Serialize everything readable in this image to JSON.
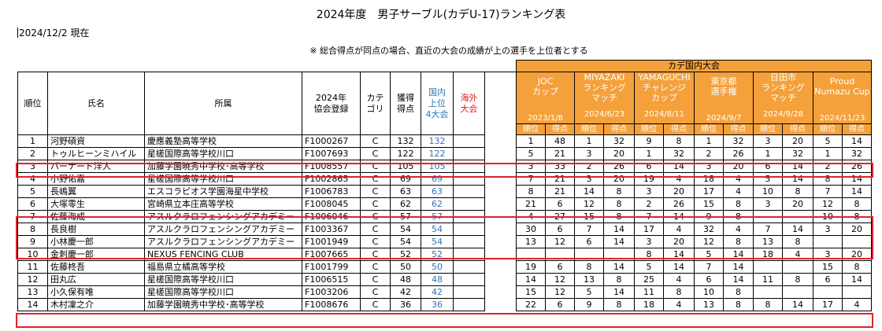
{
  "title": "2024年度　男子サーブル(カデU-17)ランキング表",
  "date": "2024/12/2 現在",
  "note": "※ 総合得点が同点の場合、直近の大会の成績が上の選手を上位者とする",
  "headers": {
    "rank": "順位",
    "name": "氏名",
    "affiliation": "所属",
    "reg_line1": "2024年",
    "reg_line2": "協会登録",
    "cat_line1": "カテ",
    "cat_line2": "ゴリ",
    "points_line1": "獲得",
    "points_line2": "得点",
    "domestic_line1": "国内",
    "domestic_line2": "上位",
    "domestic_line3": "4大会",
    "overseas_line1": "海外",
    "overseas_line2": "大会",
    "domestic_group": "カデ国内大会",
    "sub_rank": "順位",
    "sub_points": "得点"
  },
  "events": [
    {
      "line1": "JOC",
      "line2": "カップ",
      "line3": "",
      "date": "2023/1/8"
    },
    {
      "line1": "MIYAZAKI",
      "line2": "ランキング",
      "line3": "マッチ",
      "date": "2024/6/23"
    },
    {
      "line1": "YAMAGUCHI",
      "line2": "チャレンジ",
      "line3": "カップ",
      "date": "2024/8/11"
    },
    {
      "line1": "東京都",
      "line2": "選手権",
      "line3": "",
      "date": "2024/9/7"
    },
    {
      "line1": "日田市",
      "line2": "ランキング",
      "line3": "マッチ",
      "date": "2024/9/28"
    },
    {
      "line1": "Proud",
      "line2": "Numazu Cup",
      "line3": "",
      "date": "2024/11/23"
    }
  ],
  "rows": [
    {
      "rank": "1",
      "name": "河野碩資",
      "aff": "慶應義塾高等学校",
      "reg": "F1000267",
      "cat": "C",
      "pts": "132",
      "dom": "132",
      "res": [
        "1",
        "48",
        "1",
        "32",
        "9",
        "8",
        "1",
        "32",
        "3",
        "20",
        "5",
        "14"
      ]
    },
    {
      "rank": "2",
      "name": "トゥルヒーンミハイル",
      "aff": "星槎国際高等学校川口",
      "reg": "F1007693",
      "cat": "C",
      "pts": "122",
      "dom": "122",
      "res": [
        "5",
        "21",
        "3",
        "20",
        "1",
        "32",
        "2",
        "26",
        "1",
        "32",
        "1",
        "32"
      ]
    },
    {
      "rank": "3",
      "name": "バーナード洋人",
      "aff": "加藤学園暁秀中学校･高等学校",
      "reg": "F1008557",
      "cat": "C",
      "pts": "105",
      "dom": "105",
      "res": [
        "3",
        "33",
        "2",
        "26",
        "6",
        "14",
        "3",
        "20",
        "6",
        "14",
        "2",
        "26"
      ]
    },
    {
      "rank": "4",
      "name": "小野佑嘉",
      "aff": "星槎国際高等学校川口",
      "reg": "F1002865",
      "cat": "C",
      "pts": "69",
      "dom": "69",
      "res": [
        "7",
        "21",
        "3",
        "20",
        "19",
        "4",
        "18",
        "4",
        "5",
        "14",
        "8",
        "14"
      ]
    },
    {
      "rank": "5",
      "name": "長嶋翼",
      "aff": "エスコラピオス学園海星中学校",
      "reg": "F1006783",
      "cat": "C",
      "pts": "63",
      "dom": "63",
      "res": [
        "8",
        "21",
        "14",
        "8",
        "3",
        "20",
        "17",
        "4",
        "10",
        "8",
        "7",
        "14"
      ]
    },
    {
      "rank": "6",
      "name": "大塚零生",
      "aff": "宮崎県立本庄高等学校",
      "reg": "F1008045",
      "cat": "C",
      "pts": "62",
      "dom": "62",
      "res": [
        "21",
        "6",
        "12",
        "8",
        "2",
        "26",
        "15",
        "8",
        "3",
        "20",
        "12",
        "8"
      ]
    },
    {
      "rank": "7",
      "name": "佐藤海成",
      "aff": "アスルクラロフェンシングアカデミー",
      "reg": "F1006046",
      "cat": "C",
      "pts": "57",
      "dom": "57",
      "res": [
        "4",
        "27",
        "15",
        "8",
        "7",
        "14",
        "9",
        "8",
        "",
        "",
        "10",
        "8"
      ]
    },
    {
      "rank": "8",
      "name": "長良樹",
      "aff": "アスルクラロフェンシングアカデミー",
      "reg": "F1003367",
      "cat": "C",
      "pts": "54",
      "dom": "54",
      "res": [
        "30",
        "6",
        "7",
        "14",
        "17",
        "4",
        "32",
        "4",
        "7",
        "14",
        "3",
        "20"
      ]
    },
    {
      "rank": "9",
      "name": "小林慶一郎",
      "aff": "アスルクラロフェンシングアカデミー",
      "reg": "F1001949",
      "cat": "C",
      "pts": "54",
      "dom": "54",
      "res": [
        "13",
        "12",
        "6",
        "14",
        "3",
        "20",
        "12",
        "8",
        "13",
        "8",
        "",
        ""
      ]
    },
    {
      "rank": "10",
      "name": "金刺慶一郎",
      "aff": "NEXUS FENCING CLUB",
      "reg": "F1007665",
      "cat": "C",
      "pts": "52",
      "dom": "52",
      "res": [
        "",
        "",
        "",
        "",
        "8",
        "14",
        "5",
        "14",
        "18",
        "4",
        "3",
        "20"
      ]
    },
    {
      "rank": "11",
      "name": "佐藤柊吾",
      "aff": "福島県立橘高等学校",
      "reg": "F1001799",
      "cat": "C",
      "pts": "50",
      "dom": "50",
      "res": [
        "19",
        "6",
        "8",
        "14",
        "5",
        "14",
        "7",
        "14",
        "",
        "",
        "15",
        "8"
      ]
    },
    {
      "rank": "12",
      "name": "田丸広",
      "aff": "星槎国際高等学校川口",
      "reg": "F1006515",
      "cat": "C",
      "pts": "48",
      "dom": "48",
      "res": [
        "14",
        "12",
        "13",
        "8",
        "25",
        "4",
        "6",
        "14",
        "11",
        "8",
        "6",
        "14"
      ]
    },
    {
      "rank": "13",
      "name": "小久保有唯",
      "aff": "星槎国際高等学校川口",
      "reg": "F1003206",
      "cat": "C",
      "pts": "42",
      "dom": "42",
      "res": [
        "15",
        "12",
        "5",
        "14",
        "11",
        "8",
        "10",
        "8",
        "",
        "",
        "",
        ""
      ]
    },
    {
      "rank": "14",
      "name": "木村凜之介",
      "aff": "加藤学園暁秀中学校･高等学校",
      "reg": "F1008676",
      "cat": "C",
      "pts": "36",
      "dom": "36",
      "res": [
        "22",
        "6",
        "9",
        "8",
        "18",
        "4",
        "13",
        "8",
        "8",
        "14",
        "17",
        "4"
      ]
    }
  ]
}
